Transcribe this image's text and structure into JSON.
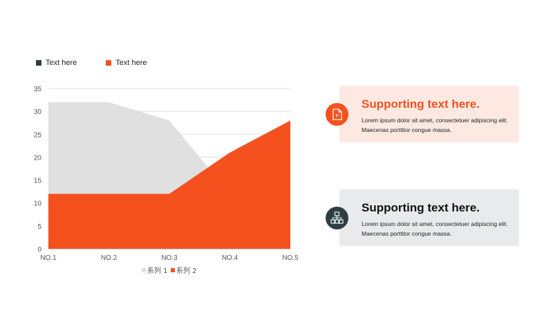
{
  "top_legend": [
    {
      "label": "Text here",
      "color": "#2e3e44"
    },
    {
      "label": "Text here",
      "color": "#f4511e"
    }
  ],
  "chart_data": {
    "type": "area",
    "categories": [
      "NO.1",
      "NO.2",
      "NO.3",
      "NO.4",
      "NO.5"
    ],
    "series": [
      {
        "name": "系列 1",
        "values": [
          32,
          32,
          28,
          12,
          12
        ],
        "color": "#e0e0e0"
      },
      {
        "name": "系列 2",
        "values": [
          12,
          12,
          12,
          21,
          28
        ],
        "color": "#f4511e"
      }
    ],
    "ylim": [
      0,
      35
    ],
    "yticks": [
      0,
      5,
      10,
      15,
      20,
      25,
      30,
      35
    ],
    "grid": true,
    "legend_position": "bottom"
  },
  "cards": [
    {
      "title": "Supporting text here.",
      "body": "Lorem ipsum dolor sit amet, consectetuer adipiscing elit. Maecenas porttitor congue massa.",
      "bg": "#fde9e1",
      "title_color": "#f4511e",
      "icon": "powerpoint-file-icon",
      "icon_bg": "#f4511e"
    },
    {
      "title": "Supporting text here.",
      "body": "Lorem ipsum dolor sit amet, consectetuer adipiscing elit. Maecenas porttitor congue massa.",
      "bg": "#e9eaeb",
      "title_color": "#111111",
      "icon": "sitemap-icon",
      "icon_bg": "#2e3e44"
    }
  ]
}
